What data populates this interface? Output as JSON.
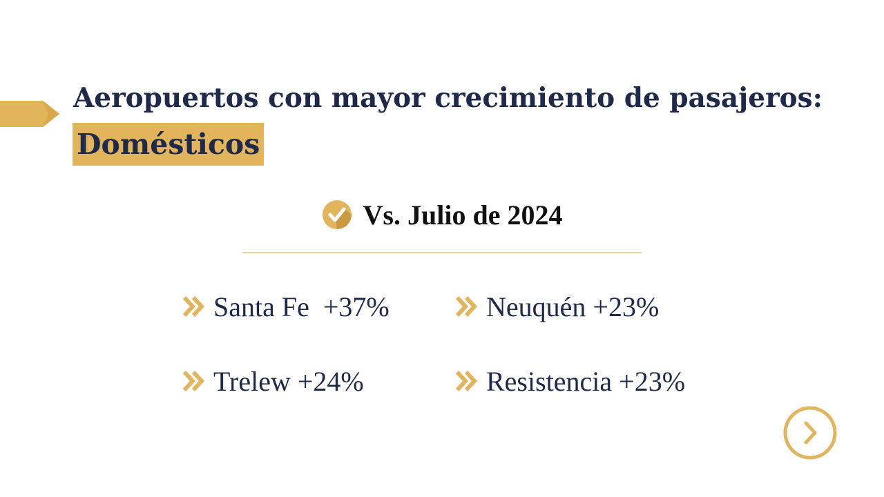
{
  "slide": {
    "title_line1": "Aeropuertos con mayor crecimiento de pasajeros:",
    "title_highlight": "Domésticos",
    "subtitle": "Vs. Julio de 2024",
    "items": [
      {
        "label": "Santa Fe  +37%"
      },
      {
        "label": "Neuquén +23%"
      },
      {
        "label": "Trelew +24%"
      },
      {
        "label": "Resistencia +23%"
      }
    ]
  },
  "icons": {
    "arrow_tab": "arrow-tab-icon",
    "check": "check-circle-icon",
    "bullet": "double-chevron-icon",
    "next": "next-arrow-icon"
  },
  "colors": {
    "navy": "#1f2a4a",
    "gold": "#e2b55d",
    "gold_light": "#ecd49c"
  }
}
